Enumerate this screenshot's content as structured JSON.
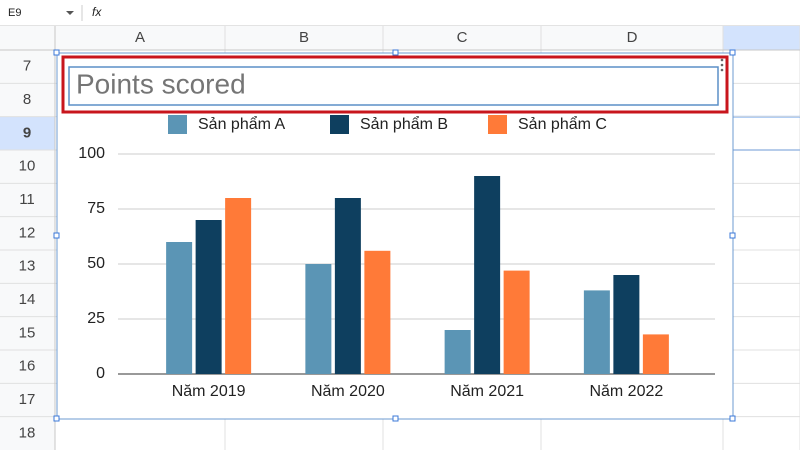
{
  "sheet": {
    "name_box": "E9",
    "formula_icon": "fx",
    "columns": [
      "A",
      "B",
      "C",
      "D"
    ],
    "rows": [
      "7",
      "8",
      "9",
      "10",
      "11",
      "12",
      "13",
      "14",
      "15",
      "16",
      "17",
      "18"
    ]
  },
  "chart_data": {
    "type": "bar",
    "title": "Points scored",
    "categories": [
      "Năm 2019",
      "Năm 2020",
      "Năm 2021",
      "Năm 2022"
    ],
    "series": [
      {
        "name": "Sản phẩm A",
        "color": "#5b95b5",
        "values": [
          60,
          50,
          20,
          38
        ]
      },
      {
        "name": "Sản phẩm B",
        "color": "#0e3f5f",
        "values": [
          70,
          80,
          90,
          45
        ]
      },
      {
        "name": "Sản phẩm C",
        "color": "#ff7a38",
        "values": [
          80,
          56,
          47,
          18
        ]
      }
    ],
    "ylim": [
      0,
      100
    ],
    "yticks": [
      0,
      25,
      50,
      75,
      100
    ],
    "grid": true,
    "legend": "top"
  }
}
